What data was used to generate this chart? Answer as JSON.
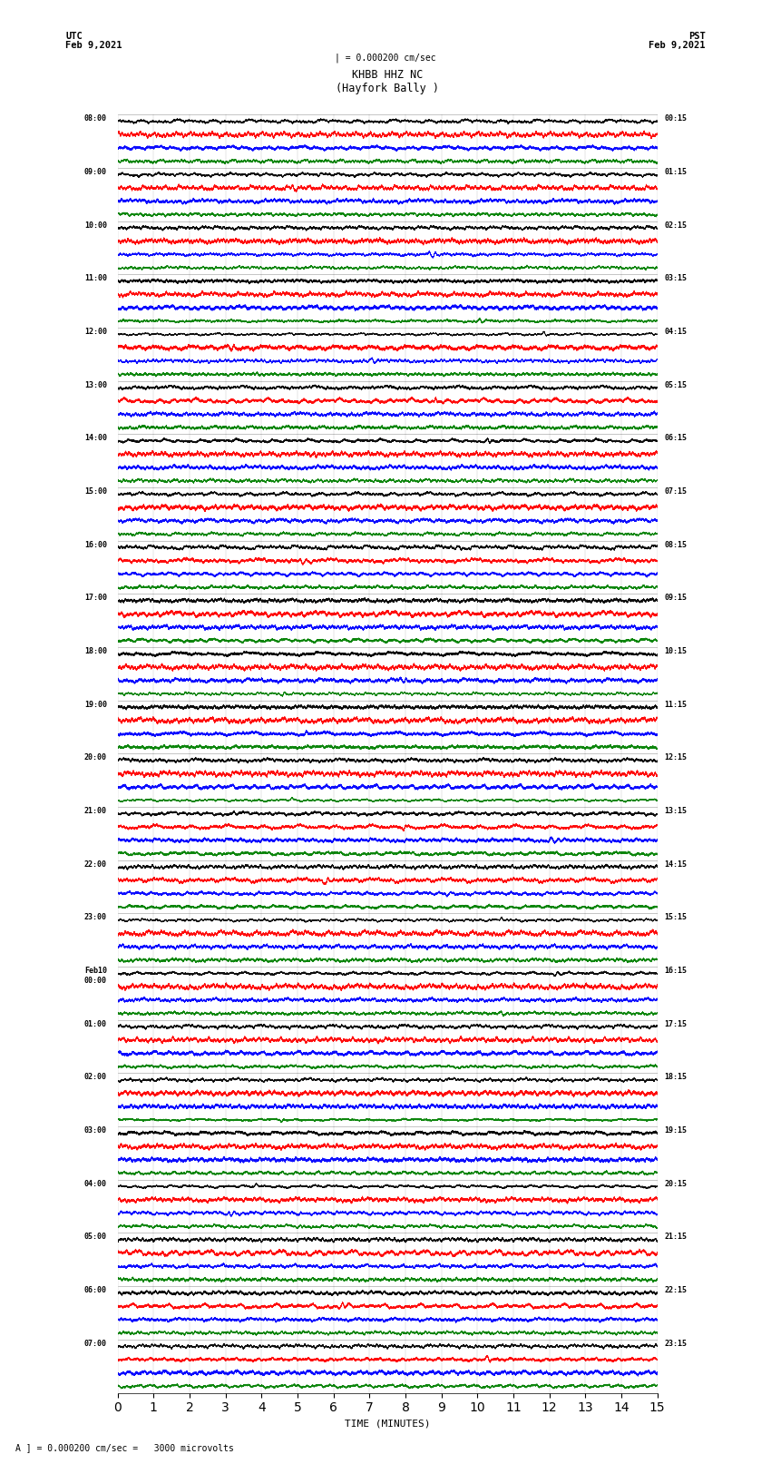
{
  "title_line1": "KHBB HHZ NC",
  "title_line2": "(Hayfork Bally )",
  "scale_text": "= 0.000200 cm/sec =   3000 microvolts",
  "utc_label": "UTC",
  "utc_date": "Feb 9,2021",
  "pst_label": "PST",
  "pst_date": "Feb 9,2021",
  "xlabel": "TIME (MINUTES)",
  "left_times": [
    "08:00",
    "09:00",
    "10:00",
    "11:00",
    "12:00",
    "13:00",
    "14:00",
    "15:00",
    "16:00",
    "17:00",
    "18:00",
    "19:00",
    "20:00",
    "21:00",
    "22:00",
    "23:00",
    "Feb10\n00:00",
    "01:00",
    "02:00",
    "03:00",
    "04:00",
    "05:00",
    "06:00",
    "07:00"
  ],
  "right_times": [
    "00:15",
    "01:15",
    "02:15",
    "03:15",
    "04:15",
    "05:15",
    "06:15",
    "07:15",
    "08:15",
    "09:15",
    "10:15",
    "11:15",
    "12:15",
    "13:15",
    "14:15",
    "15:15",
    "16:15",
    "17:15",
    "18:15",
    "19:15",
    "20:15",
    "21:15",
    "22:15",
    "23:15"
  ],
  "n_rows": 24,
  "traces_per_row": 4,
  "colors": [
    "black",
    "red",
    "blue",
    "green"
  ],
  "minutes": 15,
  "sample_rate": 50,
  "fig_width": 8.5,
  "fig_height": 16.13,
  "background_color": "white",
  "xticks": [
    0,
    1,
    2,
    3,
    4,
    5,
    6,
    7,
    8,
    9,
    10,
    11,
    12,
    13,
    14,
    15
  ]
}
